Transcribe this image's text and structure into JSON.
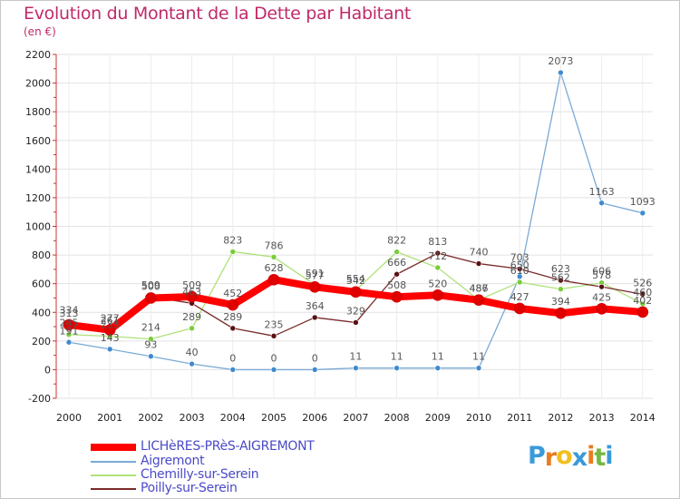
{
  "header": {
    "title": "Evolution du Montant de la Dette par Habitant",
    "unit": "(en €)"
  },
  "colors": {
    "title": "#c02a6a",
    "legend_text": "#4a4ac8",
    "grid": "#dddddd"
  },
  "chart_data": {
    "type": "line",
    "title": "Evolution du Montant de la Dette par Habitant",
    "ylabel": "(en €)",
    "xlabel": "",
    "x": [
      "2000",
      "2001",
      "2002",
      "2003",
      "2004",
      "2005",
      "2006",
      "2007",
      "2008",
      "2009",
      "2010",
      "2011",
      "2012",
      "2013",
      "2014"
    ],
    "ylim": [
      -200,
      2200
    ],
    "yticks": [
      -200,
      0,
      200,
      400,
      600,
      800,
      1000,
      1200,
      1400,
      1600,
      1800,
      2000,
      2200
    ],
    "grid": true,
    "legend_position": "bottom-left",
    "series": [
      {
        "name": "LICHèRES-PRèS-AIGREMONT",
        "color": "#ff0000",
        "marker": "#e00000",
        "width": 8,
        "values": [
          313,
          277,
          500,
          509,
          452,
          628,
          577,
          542,
          508,
          520,
          486,
          427,
          394,
          425,
          402
        ]
      },
      {
        "name": "Aigremont",
        "color": "#7aaad6",
        "marker": "#3f8ad0",
        "width": 1.3,
        "values": [
          191,
          143,
          93,
          40,
          0,
          0,
          0,
          11,
          11,
          11,
          11,
          650,
          2073,
          1163,
          1093
        ]
      },
      {
        "name": "Chemilly-sur-Serein",
        "color": "#aee27a",
        "marker": "#7acc3a",
        "width": 1.3,
        "values": [
          245,
          233,
          214,
          289,
          823,
          786,
          591,
          554,
          822,
          712,
          487,
          610,
          562,
          606,
          460
        ]
      },
      {
        "name": "Poilly-sur-Serein",
        "color": "#7a2a2a",
        "marker": "#5a1010",
        "width": 1.3,
        "values": [
          334,
          261,
          509,
          463,
          289,
          235,
          364,
          329,
          666,
          813,
          740,
          703,
          623,
          578,
          526
        ]
      }
    ]
  },
  "logo": {
    "letters": [
      "P",
      "r",
      "o",
      "x",
      "i",
      "t",
      "i"
    ],
    "colors": [
      "#3a9ad9",
      "#e87d1e",
      "#f0c020",
      "#3a9ad9",
      "#e87d1e",
      "#77b843",
      "#3a9ad9"
    ]
  }
}
